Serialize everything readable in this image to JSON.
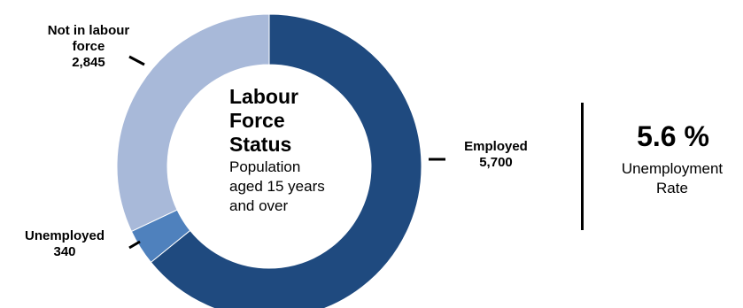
{
  "chart_data": {
    "type": "pie",
    "title": "Labour Force Status",
    "subtitle": "Population aged 15 years and over",
    "categories": [
      "Employed",
      "Unemployed",
      "Not in labour force"
    ],
    "values": [
      5700,
      340,
      2845
    ],
    "value_labels": [
      "5,700",
      "340",
      "2,845"
    ],
    "colors": [
      "#1f4a7f",
      "#4f81bd",
      "#a8b9d9"
    ],
    "donut": true,
    "legend": "none"
  },
  "center": {
    "title_lines": [
      "Labour",
      "Force",
      "Status"
    ],
    "subtitle_lines": [
      "Population",
      "aged 15 years",
      "and over"
    ]
  },
  "labels": {
    "not_in_labour_force": {
      "name_lines": [
        "Not in labour",
        "force"
      ],
      "value": "2,845"
    },
    "unemployed": {
      "name_lines": [
        "Unemployed"
      ],
      "value": "340"
    },
    "employed": {
      "name_lines": [
        "Employed"
      ],
      "value": "5,700"
    }
  },
  "kpi": {
    "value": "5.6 %",
    "label_lines": [
      "Unemployment",
      "Rate"
    ]
  }
}
